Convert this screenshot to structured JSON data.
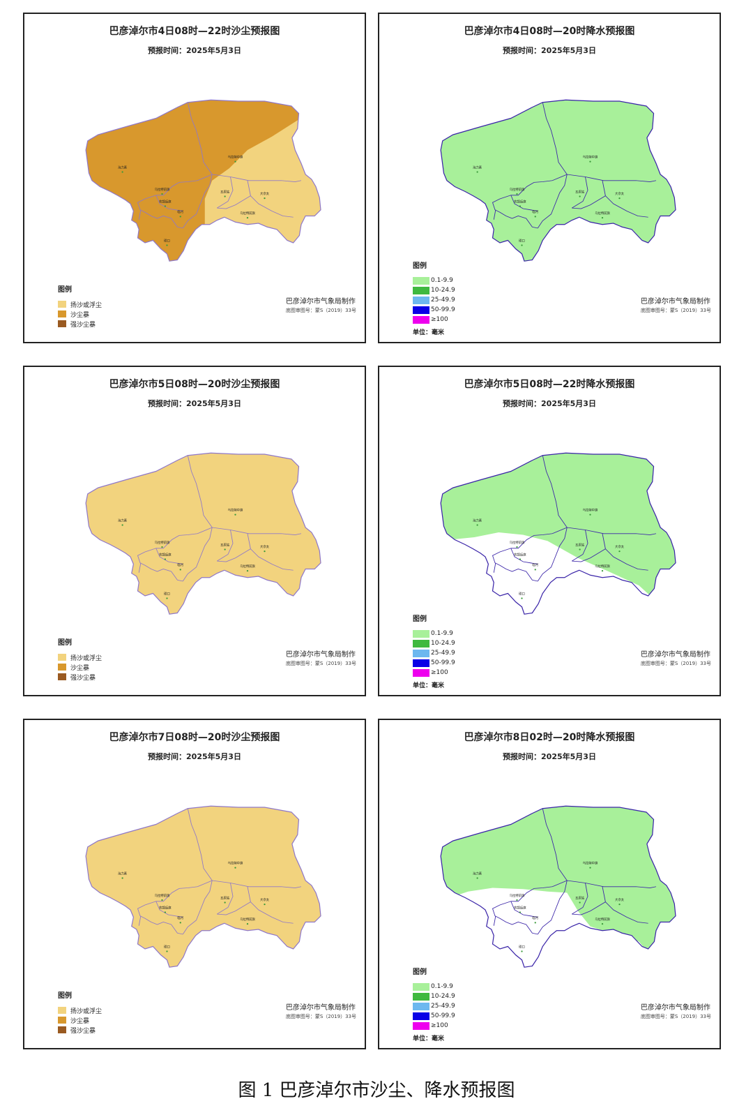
{
  "figure_caption": "图 1  巴彦淖尔市沙尘、降水预报图",
  "dust_legend": {
    "title": "图例",
    "items": [
      {
        "label": "扬沙或浮尘",
        "color": "#f2d37e"
      },
      {
        "label": "沙尘暴",
        "color": "#d8982d"
      },
      {
        "label": "强沙尘暴",
        "color": "#9a5a21"
      }
    ]
  },
  "rain_legend": {
    "title": "图例",
    "items": [
      {
        "label": "0.1-9.9",
        "color": "#a8f09a"
      },
      {
        "label": "10-24.9",
        "color": "#3fb93f"
      },
      {
        "label": "25-49.9",
        "color": "#6db8ef"
      },
      {
        "label": "50-99.9",
        "color": "#0b00e6"
      },
      {
        "label": "≥100",
        "color": "#ee00ee"
      }
    ],
    "unit": "单位：毫米"
  },
  "maker": {
    "name": "巴彦淖尔市气象局制作",
    "approval": "底图审图号：蒙S（2019）33号"
  },
  "towns": [
    "海力素",
    "乌拉特中旗",
    "乌拉特前旗",
    "杭锦后旗",
    "五原站",
    "大佘太",
    "临河",
    "乌拉特前旗",
    "磴口"
  ],
  "panels": [
    {
      "title": "巴彦淖尔市4日08时—22时沙尘预报图",
      "subtitle": "预报时间：2025年5月3日",
      "type": "dust",
      "variant": "split"
    },
    {
      "title": "巴彦淖尔市4日08时—20时降水预报图",
      "subtitle": "预报时间：2025年5月3日",
      "type": "rain",
      "variant": "full"
    },
    {
      "title": "巴彦淖尔市5日08时—20时沙尘预报图",
      "subtitle": "预报时间：2025年5月3日",
      "type": "dust",
      "variant": "light"
    },
    {
      "title": "巴彦淖尔市5日08时—22时降水预报图",
      "subtitle": "预报时间：2025年5月3日",
      "type": "rain",
      "variant": "diag"
    },
    {
      "title": "巴彦淖尔市7日08时—20时沙尘预报图",
      "subtitle": "预报时间：2025年5月3日",
      "type": "dust",
      "variant": "light"
    },
    {
      "title": "巴彦淖尔市8日02时—20时降水预报图",
      "subtitle": "预报时间：2025年5月3日",
      "type": "rain",
      "variant": "notch"
    }
  ]
}
